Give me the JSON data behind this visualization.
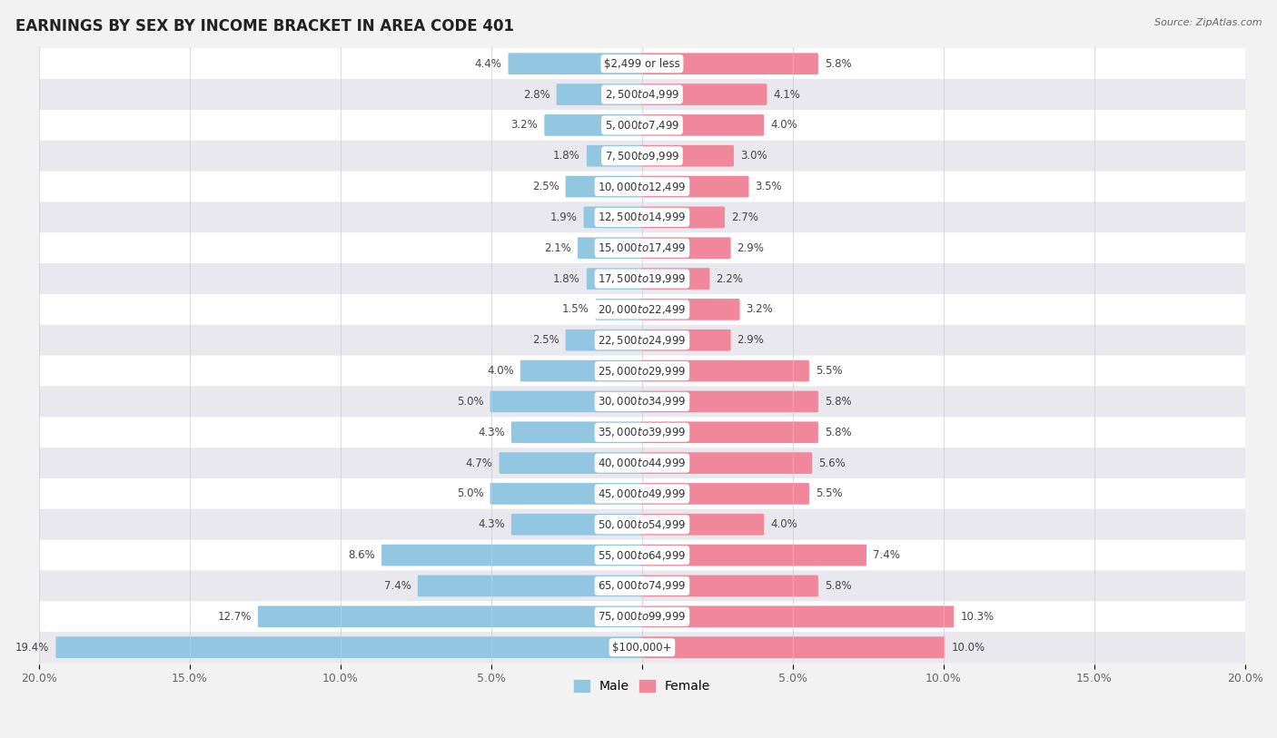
{
  "title": "EARNINGS BY SEX BY INCOME BRACKET IN AREA CODE 401",
  "source": "Source: ZipAtlas.com",
  "categories": [
    "$2,499 or less",
    "$2,500 to $4,999",
    "$5,000 to $7,499",
    "$7,500 to $9,999",
    "$10,000 to $12,499",
    "$12,500 to $14,999",
    "$15,000 to $17,499",
    "$17,500 to $19,999",
    "$20,000 to $22,499",
    "$22,500 to $24,999",
    "$25,000 to $29,999",
    "$30,000 to $34,999",
    "$35,000 to $39,999",
    "$40,000 to $44,999",
    "$45,000 to $49,999",
    "$50,000 to $54,999",
    "$55,000 to $64,999",
    "$65,000 to $74,999",
    "$75,000 to $99,999",
    "$100,000+"
  ],
  "male_values": [
    4.4,
    2.8,
    3.2,
    1.8,
    2.5,
    1.9,
    2.1,
    1.8,
    1.5,
    2.5,
    4.0,
    5.0,
    4.3,
    4.7,
    5.0,
    4.3,
    8.6,
    7.4,
    12.7,
    19.4
  ],
  "female_values": [
    5.8,
    4.1,
    4.0,
    3.0,
    3.5,
    2.7,
    2.9,
    2.2,
    3.2,
    2.9,
    5.5,
    5.8,
    5.8,
    5.6,
    5.5,
    4.0,
    7.4,
    5.8,
    10.3,
    10.0
  ],
  "male_color": "#93c6e0",
  "female_color": "#f0879a",
  "bar_height": 0.62,
  "xlim": 20.0,
  "background_color": "#f2f2f2",
  "row_color_even": "#ffffff",
  "row_color_odd": "#e8e8ee",
  "title_fontsize": 12,
  "label_fontsize": 8.5,
  "axis_fontsize": 9,
  "legend_fontsize": 10,
  "value_label_color": "#444444",
  "cat_label_color": "#333333",
  "cat_label_fontsize": 8.5
}
